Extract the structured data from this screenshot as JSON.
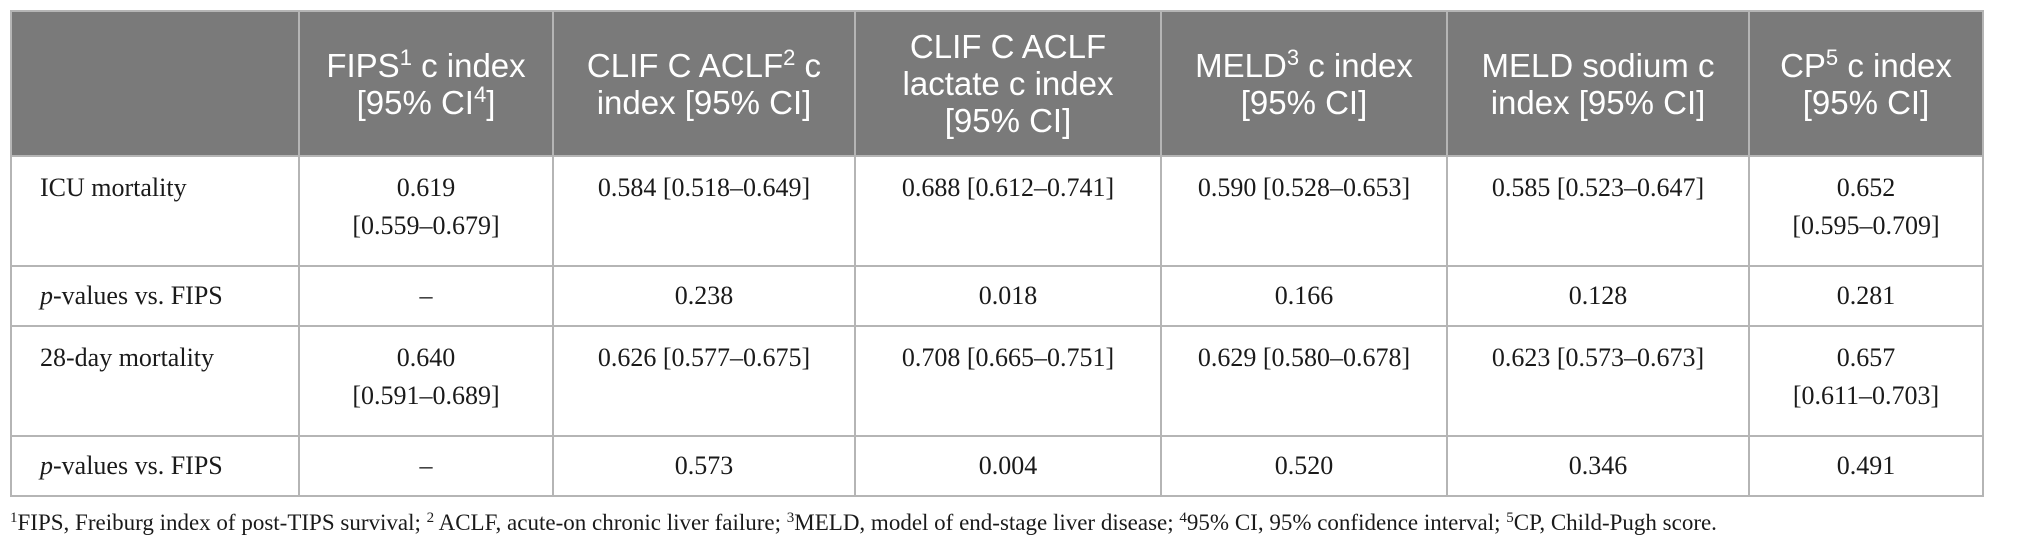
{
  "table": {
    "headers": [
      {
        "pre": "",
        "sup": "",
        "post": ""
      },
      {
        "pre": "FIPS",
        "sup": "1",
        "post": " c index [95% CI",
        "sup2": "4",
        "post2": "]"
      },
      {
        "pre": "CLIF C ACLF",
        "sup": "2",
        "post": " c index [95% CI]"
      },
      {
        "pre": "CLIF C ACLF lactate c index [95% CI]",
        "sup": "",
        "post": ""
      },
      {
        "pre": "MELD",
        "sup": "3",
        "post": " c index [95% CI]"
      },
      {
        "pre": "MELD sodium c index [95% CI]",
        "sup": "",
        "post": ""
      },
      {
        "pre": "CP",
        "sup": "5",
        "post": " c index [95% CI]"
      }
    ],
    "rows": [
      {
        "label": "ICU mortality",
        "cells": [
          {
            "a": "0.619",
            "b": "[0.559–0.679]"
          },
          {
            "a": "0.584 [0.518–0.649]",
            "b": ""
          },
          {
            "a": "0.688 [0.612–0.741]",
            "b": ""
          },
          {
            "a": "0.590 [0.528–0.653]",
            "b": ""
          },
          {
            "a": "0.585 [0.523–0.647]",
            "b": ""
          },
          {
            "a": "0.652",
            "b": "[0.595–0.709]"
          }
        ]
      },
      {
        "label_italic": "p",
        "label": "-values vs. FIPS",
        "cells": [
          {
            "a": "–",
            "b": ""
          },
          {
            "a": "0.238",
            "b": ""
          },
          {
            "a": "0.018",
            "b": ""
          },
          {
            "a": "0.166",
            "b": ""
          },
          {
            "a": "0.128",
            "b": ""
          },
          {
            "a": "0.281",
            "b": ""
          }
        ]
      },
      {
        "label": "28-day mortality",
        "cells": [
          {
            "a": "0.640",
            "b": "[0.591–0.689]"
          },
          {
            "a": "0.626 [0.577–0.675]",
            "b": ""
          },
          {
            "a": "0.708 [0.665–0.751]",
            "b": ""
          },
          {
            "a": "0.629 [0.580–0.678]",
            "b": ""
          },
          {
            "a": "0.623 [0.573–0.673]",
            "b": ""
          },
          {
            "a": "0.657",
            "b": "[0.611–0.703]"
          }
        ]
      },
      {
        "label_italic": "p",
        "label": "-values vs. FIPS",
        "cells": [
          {
            "a": "–",
            "b": ""
          },
          {
            "a": "0.573",
            "b": ""
          },
          {
            "a": "0.004",
            "b": ""
          },
          {
            "a": "0.520",
            "b": ""
          },
          {
            "a": "0.346",
            "b": ""
          },
          {
            "a": "0.491",
            "b": ""
          }
        ]
      }
    ]
  },
  "footnote": {
    "items": [
      {
        "sup": "1",
        "text": "FIPS, Freiburg index of post-TIPS survival; "
      },
      {
        "sup": "2",
        "text": " ACLF, acute-on chronic liver failure; "
      },
      {
        "sup": "3",
        "text": "MELD, model of end-stage liver disease; "
      },
      {
        "sup": "4",
        "text": "95% CI, 95% confidence interval; "
      },
      {
        "sup": "5",
        "text": "CP, Child-Pugh score."
      }
    ]
  }
}
